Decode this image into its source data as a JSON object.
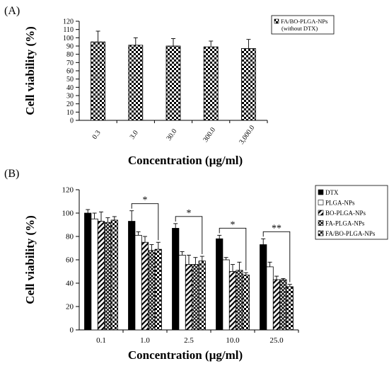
{
  "chart_data": [
    {
      "panel_label": "(A)",
      "type": "bar",
      "title": "",
      "xlabel": "Concentration (µg/ml)",
      "ylabel": "Cell viability (%)",
      "ylim": [
        0,
        120
      ],
      "yticks": [
        0,
        10,
        20,
        30,
        40,
        50,
        60,
        70,
        80,
        90,
        100,
        110,
        120
      ],
      "categories": [
        "0.3",
        "3.0",
        "30.0",
        "300.0",
        "3,000.0"
      ],
      "x_tick_rotation": "rotated",
      "legend": "top-right",
      "grid": false,
      "series": [
        {
          "name": "FA/BO-PLGA-NPs",
          "name_line2": "(without DTX)",
          "pattern": "checker",
          "values": [
            95,
            91,
            90,
            89,
            87
          ],
          "errors": [
            13,
            9,
            9,
            7,
            11
          ]
        }
      ]
    },
    {
      "panel_label": "(B)",
      "type": "bar",
      "title": "",
      "xlabel": "Concentration (µg/ml)",
      "ylabel": "Cell viability (%)",
      "ylim": [
        0,
        120
      ],
      "yticks": [
        0,
        20,
        40,
        60,
        80,
        100,
        120
      ],
      "categories": [
        "0.1",
        "1.0",
        "2.5",
        "10.0",
        "25.0"
      ],
      "legend": "top-right",
      "grid": false,
      "series": [
        {
          "name": "DTX",
          "pattern": "solid",
          "values": [
            100,
            93,
            87,
            78,
            73
          ],
          "errors": [
            3,
            9,
            4,
            3,
            5
          ]
        },
        {
          "name": "PLGA-NPs",
          "pattern": "white",
          "values": [
            95,
            81,
            64,
            60,
            54
          ],
          "errors": [
            5,
            3,
            3,
            2,
            4
          ]
        },
        {
          "name": "BO-PLGA-NPs",
          "pattern": "diagonal",
          "values": [
            93,
            75,
            56,
            50,
            43
          ],
          "errors": [
            8,
            5,
            8,
            6,
            3
          ]
        },
        {
          "name": "FA-PLGA-NPs",
          "pattern": "crosshatch",
          "values": [
            92,
            68,
            56,
            51,
            43
          ],
          "errors": [
            4,
            5,
            6,
            7,
            1
          ]
        },
        {
          "name": "FA/BO-PLGA-NPs",
          "pattern": "checker",
          "values": [
            94,
            69,
            59,
            47,
            37
          ],
          "errors": [
            3,
            6,
            4,
            2,
            2
          ]
        }
      ],
      "significance": [
        {
          "category_index": 1,
          "label": "*"
        },
        {
          "category_index": 2,
          "label": "*"
        },
        {
          "category_index": 3,
          "label": "*"
        },
        {
          "category_index": 4,
          "label": "**"
        }
      ]
    }
  ]
}
